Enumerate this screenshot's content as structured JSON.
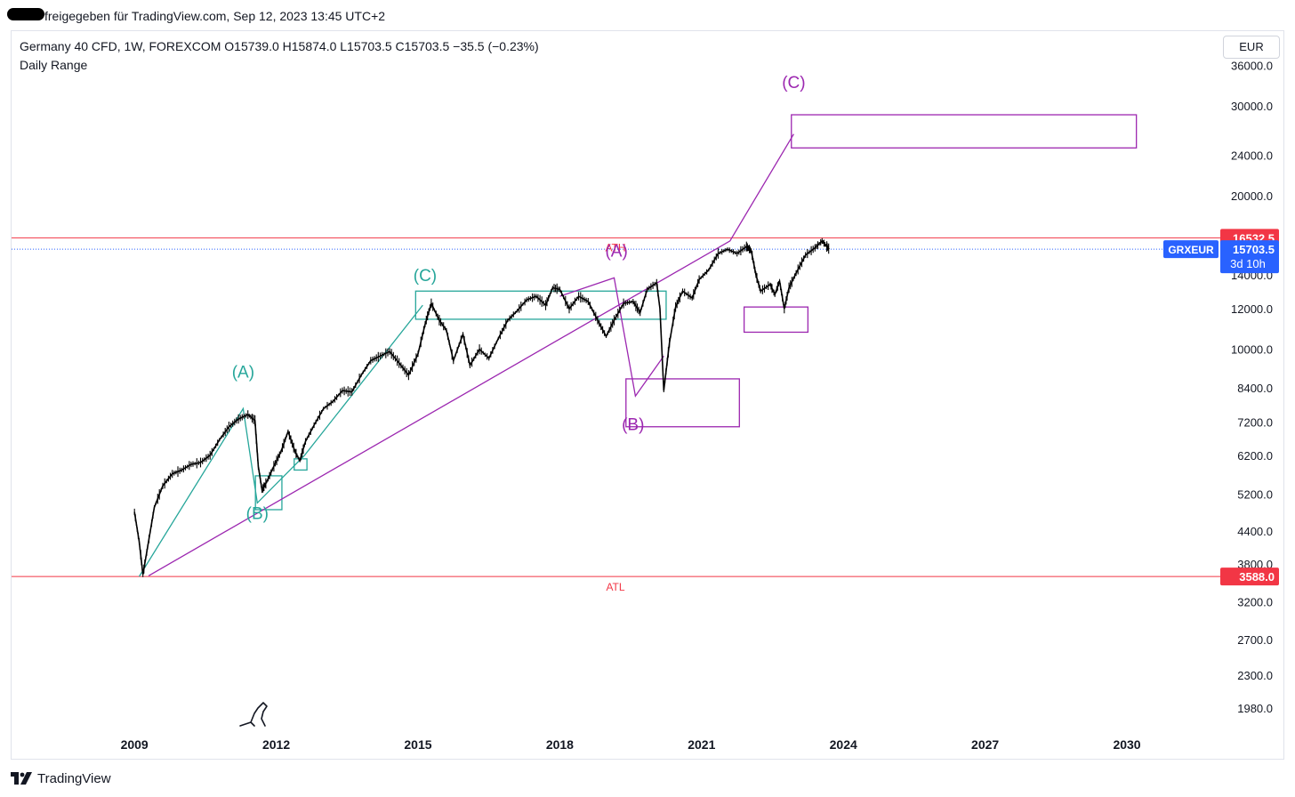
{
  "header": {
    "shared_text": "freigegeben für TradingView.com, Sep 12, 2023 13:45 UTC+2"
  },
  "legend": {
    "title": "Germany 40 CFD, 1W, FOREXCOM  O15739.0  H15874.0  L15703.5  C15703.5  −35.5 (−0.23%)",
    "indicator": "Daily Range"
  },
  "currency_button": "EUR",
  "footer": {
    "brand": "TradingView"
  },
  "colors": {
    "candles": "#000000",
    "teal": "#26a69a",
    "purple": "#9c27b0",
    "red": "#f23645",
    "blue": "#2962ff"
  },
  "chart_data": {
    "type": "line",
    "symbol": "GRXEUR",
    "scale": "log",
    "ylim": [
      1800,
      42000
    ],
    "xlim": [
      2006.4,
      2031.9
    ],
    "x_ticks": [
      "2009",
      "2012",
      "2015",
      "2018",
      "2021",
      "2024",
      "2027",
      "2030"
    ],
    "y_ticks": [
      "36000.0",
      "30000.0",
      "24000.0",
      "20000.0",
      "14000.0",
      "12000.0",
      "10000.0",
      "8400.0",
      "7200.0",
      "6200.0",
      "5200.0",
      "4400.0",
      "3800.0",
      "3200.0",
      "2700.0",
      "2300.0",
      "1980.0"
    ],
    "series": [
      {
        "points": [
          [
            2009.0,
            4800
          ],
          [
            2009.1,
            4200
          ],
          [
            2009.18,
            3620
          ],
          [
            2009.28,
            4100
          ],
          [
            2009.42,
            4900
          ],
          [
            2009.6,
            5400
          ],
          [
            2009.8,
            5700
          ],
          [
            2010.0,
            5800
          ],
          [
            2010.2,
            5950
          ],
          [
            2010.4,
            6000
          ],
          [
            2010.6,
            6200
          ],
          [
            2010.8,
            6650
          ],
          [
            2011.0,
            7050
          ],
          [
            2011.2,
            7300
          ],
          [
            2011.4,
            7450
          ],
          [
            2011.55,
            7250
          ],
          [
            2011.62,
            5900
          ],
          [
            2011.7,
            5300
          ],
          [
            2011.8,
            5500
          ],
          [
            2011.95,
            5900
          ],
          [
            2012.1,
            6300
          ],
          [
            2012.25,
            6900
          ],
          [
            2012.4,
            6300
          ],
          [
            2012.5,
            6050
          ],
          [
            2012.62,
            6600
          ],
          [
            2012.8,
            7100
          ],
          [
            2013.0,
            7650
          ],
          [
            2013.2,
            7900
          ],
          [
            2013.4,
            8300
          ],
          [
            2013.6,
            8250
          ],
          [
            2013.8,
            8900
          ],
          [
            2014.0,
            9500
          ],
          [
            2014.2,
            9700
          ],
          [
            2014.4,
            9900
          ],
          [
            2014.6,
            9400
          ],
          [
            2014.8,
            8900
          ],
          [
            2015.0,
            9800
          ],
          [
            2015.15,
            11200
          ],
          [
            2015.28,
            12300
          ],
          [
            2015.45,
            11400
          ],
          [
            2015.6,
            10900
          ],
          [
            2015.75,
            9500
          ],
          [
            2015.95,
            10700
          ],
          [
            2016.1,
            9300
          ],
          [
            2016.3,
            10000
          ],
          [
            2016.5,
            9600
          ],
          [
            2016.7,
            10500
          ],
          [
            2016.9,
            11400
          ],
          [
            2017.1,
            11900
          ],
          [
            2017.3,
            12500
          ],
          [
            2017.5,
            12700
          ],
          [
            2017.7,
            12200
          ],
          [
            2017.85,
            13200
          ],
          [
            2018.0,
            13100
          ],
          [
            2018.2,
            12000
          ],
          [
            2018.4,
            12700
          ],
          [
            2018.6,
            12400
          ],
          [
            2018.8,
            11400
          ],
          [
            2018.98,
            10600
          ],
          [
            2019.15,
            11400
          ],
          [
            2019.35,
            12300
          ],
          [
            2019.55,
            12400
          ],
          [
            2019.7,
            11800
          ],
          [
            2019.85,
            13100
          ],
          [
            2020.05,
            13500
          ],
          [
            2020.12,
            12000
          ],
          [
            2020.2,
            8300
          ],
          [
            2020.32,
            10300
          ],
          [
            2020.45,
            12100
          ],
          [
            2020.6,
            13000
          ],
          [
            2020.8,
            12600
          ],
          [
            2020.95,
            13700
          ],
          [
            2021.15,
            14300
          ],
          [
            2021.35,
            15400
          ],
          [
            2021.55,
            15700
          ],
          [
            2021.75,
            15400
          ],
          [
            2021.95,
            15900
          ],
          [
            2022.05,
            15600
          ],
          [
            2022.15,
            14000
          ],
          [
            2022.25,
            13000
          ],
          [
            2022.45,
            13400
          ],
          [
            2022.55,
            12800
          ],
          [
            2022.65,
            13600
          ],
          [
            2022.75,
            12000
          ],
          [
            2022.85,
            13200
          ],
          [
            2023.0,
            14100
          ],
          [
            2023.2,
            15300
          ],
          [
            2023.4,
            15800
          ],
          [
            2023.55,
            16300
          ],
          [
            2023.65,
            15900
          ],
          [
            2023.7,
            15703.5
          ]
        ]
      }
    ],
    "price_lines": [
      {
        "label": "ATH",
        "value": 16532.5,
        "price_label": "16532.5"
      },
      {
        "label": "ATL",
        "value": 3588.0,
        "price_label": "3588.0"
      }
    ],
    "last_price": {
      "ticker": "GRXEUR",
      "value": 15703.5,
      "price_label": "15703.5",
      "countdown": "3d 10h"
    },
    "wave_labels": [
      {
        "label": "(A)",
        "color": "teal",
        "x": 2011.3,
        "y": 8800
      },
      {
        "label": "(B)",
        "color": "teal",
        "x": 2011.6,
        "y": 4650
      },
      {
        "label": "(C)",
        "color": "teal",
        "x": 2015.15,
        "y": 13600
      },
      {
        "label": "(A)",
        "color": "purple",
        "x": 2019.2,
        "y": 15200
      },
      {
        "label": "(B)",
        "color": "purple",
        "x": 2019.55,
        "y": 6950
      },
      {
        "label": "(C)",
        "color": "purple",
        "x": 2022.95,
        "y": 32500
      }
    ],
    "trend_lines": [
      {
        "color": "teal",
        "points": [
          [
            2009.1,
            3588
          ],
          [
            2011.3,
            7650
          ],
          [
            2011.6,
            5000
          ],
          [
            2012.6,
            6200
          ],
          [
            2015.1,
            12200
          ]
        ]
      },
      {
        "color": "purple",
        "points": [
          [
            2009.3,
            3600
          ],
          [
            2021.6,
            16300
          ],
          [
            2022.95,
            26400
          ]
        ]
      },
      {
        "color": "purple",
        "points": [
          [
            2018.0,
            12700
          ],
          [
            2019.15,
            13800
          ],
          [
            2019.6,
            8100
          ],
          [
            2020.2,
            9700
          ]
        ]
      }
    ],
    "boxes": [
      {
        "color": "teal",
        "x": [
          2011.56,
          2012.12
        ],
        "y": [
          4850,
          5650
        ]
      },
      {
        "color": "teal",
        "x": [
          2012.38,
          2012.65
        ],
        "y": [
          5800,
          6100
        ]
      },
      {
        "color": "teal",
        "x": [
          2014.95,
          2020.25
        ],
        "y": [
          11450,
          13000
        ]
      },
      {
        "color": "purple",
        "x": [
          2019.4,
          2021.8
        ],
        "y": [
          7050,
          8750
        ]
      },
      {
        "color": "purple",
        "x": [
          2022.9,
          2030.2
        ],
        "y": [
          24800,
          28800
        ]
      },
      {
        "color": "purple",
        "x": [
          2021.9,
          2023.25
        ],
        "y": [
          10800,
          12100
        ]
      }
    ]
  }
}
